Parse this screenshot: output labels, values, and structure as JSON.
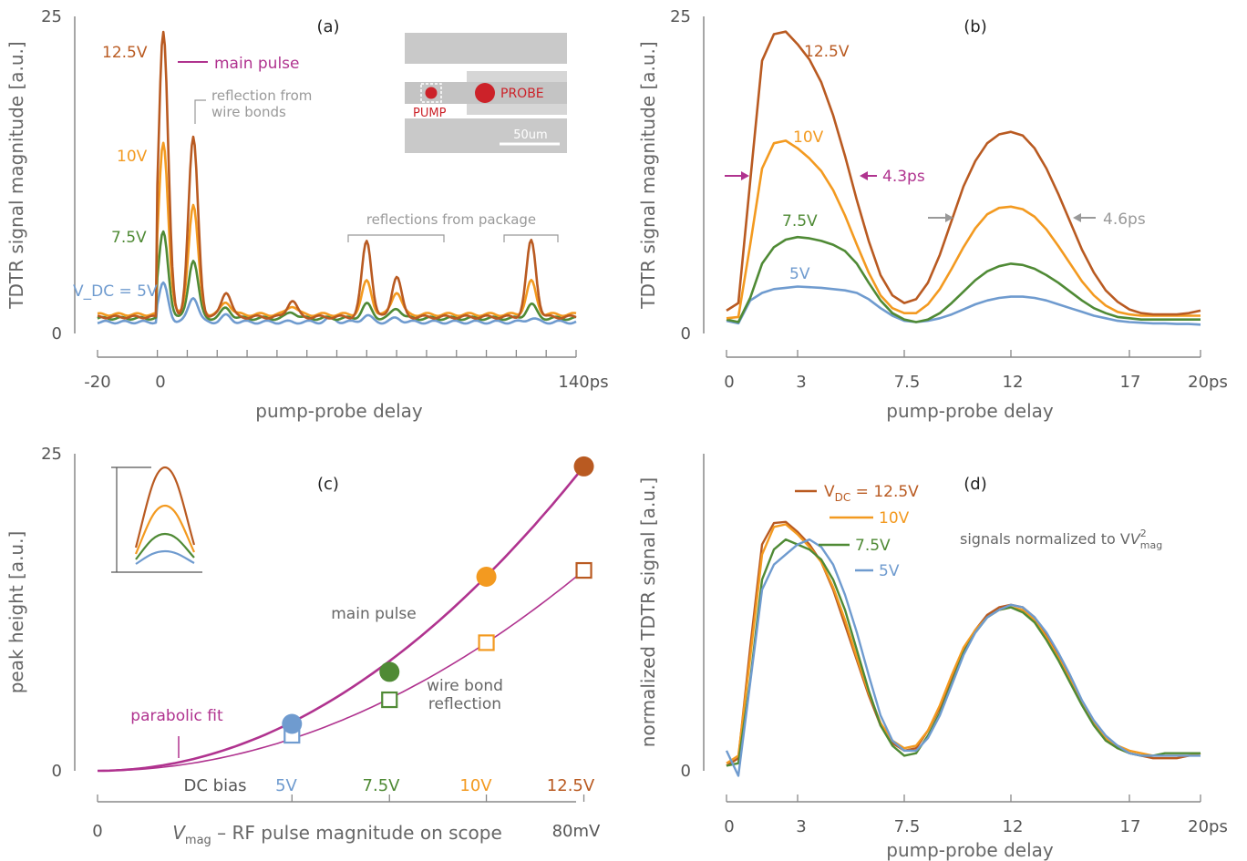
{
  "colors": {
    "v5": "#6f9bcf",
    "v7_5": "#4f8a35",
    "v10": "#f39a20",
    "v12_5": "#b95a21",
    "magenta": "#b0338f",
    "gray": "#999999",
    "red": "#cc2229"
  },
  "chart_data": [
    {
      "id": "a",
      "type": "line",
      "panel_label": "(a)",
      "xlabel": "pump-probe delay",
      "ylabel": "TDTR signal magnitude [a.u.]",
      "xlim": [
        -20,
        140
      ],
      "ylim": [
        0,
        25
      ],
      "x_tick_labels": [
        "-20",
        "0",
        "140ps"
      ],
      "y_tick_labels": [
        "0",
        "25"
      ],
      "series": [
        {
          "name": "V_DC = 5V",
          "color_key": "v5",
          "baseline": 0.9,
          "peaks": [
            [
              2,
              3.0
            ],
            [
              12,
              2.0
            ],
            [
              23,
              0.5
            ],
            [
              58,
              0.3
            ],
            [
              70,
              0.5
            ],
            [
              80,
              0.3
            ],
            [
              125,
              0.3
            ]
          ]
        },
        {
          "name": "7.5V",
          "color_key": "v7_5",
          "baseline": 1.2,
          "peaks": [
            [
              2,
              6.8
            ],
            [
              12,
              4.6
            ],
            [
              23,
              0.8
            ],
            [
              45,
              0.5
            ],
            [
              70,
              1.1
            ],
            [
              80,
              0.8
            ],
            [
              125,
              1.1
            ]
          ]
        },
        {
          "name": "10V",
          "color_key": "v10",
          "baseline": 1.5,
          "peaks": [
            [
              2,
              13.6
            ],
            [
              12,
              8.6
            ],
            [
              23,
              1.0
            ],
            [
              45,
              0.7
            ],
            [
              70,
              2.6
            ],
            [
              80,
              1.8
            ],
            [
              125,
              2.6
            ]
          ]
        },
        {
          "name": "12.5V",
          "color_key": "v12_5",
          "baseline": 1.3,
          "peaks": [
            [
              2,
              22.6
            ],
            [
              12,
              14.1
            ],
            [
              23,
              2.0
            ],
            [
              45,
              1.3
            ],
            [
              70,
              6.0
            ],
            [
              80,
              3.2
            ],
            [
              125,
              6.0
            ]
          ]
        }
      ],
      "series_labels": [
        "12.5V",
        "10V",
        "7.5V",
        "V_DC = 5V"
      ],
      "annotations": {
        "main_pulse": "main pulse",
        "wire_bonds": [
          "reflection from",
          "wire bonds"
        ],
        "package": "reflections from package"
      },
      "inset": {
        "pump": "PUMP",
        "probe": "PROBE",
        "scale": "50um"
      }
    },
    {
      "id": "b",
      "type": "line",
      "panel_label": "(b)",
      "xlabel": "pump-probe delay",
      "ylabel": "TDTR signal magnitude [a.u.]",
      "xlim": [
        0,
        20
      ],
      "ylim": [
        0,
        25
      ],
      "x_tick_labels": [
        "0",
        "3",
        "7.5",
        "12",
        "17",
        "20ps"
      ],
      "y_tick_labels": [
        "0",
        "25"
      ],
      "series": [
        {
          "name": "5V",
          "color_key": "v5",
          "x": [
            0,
            0.5,
            1,
            1.5,
            2,
            2.5,
            3,
            3.5,
            4,
            4.5,
            5,
            5.5,
            6,
            6.5,
            7,
            7.5,
            8,
            8.5,
            9,
            9.5,
            10,
            10.5,
            11,
            11.5,
            12,
            12.5,
            13,
            13.5,
            14,
            14.5,
            15,
            15.5,
            16,
            16.5,
            17,
            17.5,
            18,
            18.5,
            19,
            19.5,
            20
          ],
          "values": [
            1.0,
            0.8,
            2.6,
            3.2,
            3.5,
            3.6,
            3.7,
            3.65,
            3.6,
            3.5,
            3.4,
            3.2,
            2.7,
            2.0,
            1.4,
            1.0,
            0.9,
            1.0,
            1.2,
            1.5,
            1.9,
            2.3,
            2.6,
            2.8,
            2.9,
            2.9,
            2.8,
            2.6,
            2.3,
            2.0,
            1.7,
            1.4,
            1.2,
            1.0,
            0.9,
            0.85,
            0.8,
            0.8,
            0.75,
            0.75,
            0.7
          ]
        },
        {
          "name": "7.5V",
          "color_key": "v7_5",
          "x": [
            0,
            0.5,
            1,
            1.5,
            2,
            2.5,
            3,
            3.5,
            4,
            4.5,
            5,
            5.5,
            6,
            6.5,
            7,
            7.5,
            8,
            8.5,
            9,
            9.5,
            10,
            10.5,
            11,
            11.5,
            12,
            12.5,
            13,
            13.5,
            14,
            14.5,
            15,
            15.5,
            16,
            16.5,
            17,
            17.5,
            18,
            18.5,
            19,
            19.5,
            20
          ],
          "values": [
            1.1,
            0.9,
            2.8,
            5.5,
            6.8,
            7.4,
            7.6,
            7.5,
            7.3,
            7.0,
            6.5,
            5.5,
            4.0,
            2.6,
            1.6,
            1.1,
            0.9,
            1.1,
            1.6,
            2.4,
            3.3,
            4.2,
            4.9,
            5.3,
            5.5,
            5.4,
            5.1,
            4.6,
            4.0,
            3.3,
            2.6,
            2.0,
            1.6,
            1.3,
            1.2,
            1.1,
            1.1,
            1.1,
            1.1,
            1.1,
            1.1
          ]
        },
        {
          "name": "10V",
          "color_key": "v10",
          "x": [
            0,
            0.5,
            1,
            1.5,
            2,
            2.5,
            3,
            3.5,
            4,
            4.5,
            5,
            5.5,
            6,
            6.5,
            7,
            7.5,
            8,
            8.5,
            9,
            9.5,
            10,
            10.5,
            11,
            11.5,
            12,
            12.5,
            13,
            13.5,
            14,
            14.5,
            15,
            15.5,
            16,
            16.5,
            17,
            17.5,
            18,
            18.5,
            19,
            19.5,
            20
          ],
          "values": [
            1.2,
            1.3,
            7.0,
            13.0,
            15.0,
            15.2,
            14.6,
            13.8,
            12.8,
            11.3,
            9.3,
            7.0,
            4.8,
            3.0,
            2.0,
            1.6,
            1.6,
            2.3,
            3.5,
            5.1,
            6.8,
            8.3,
            9.4,
            9.9,
            10.0,
            9.8,
            9.2,
            8.2,
            6.9,
            5.5,
            4.1,
            3.0,
            2.2,
            1.7,
            1.5,
            1.4,
            1.4,
            1.4,
            1.4,
            1.4,
            1.4
          ]
        },
        {
          "name": "12.5V",
          "color_key": "v12_5",
          "x": [
            0,
            0.5,
            1,
            1.5,
            2,
            2.5,
            3,
            3.5,
            4,
            4.5,
            5,
            5.5,
            6,
            6.5,
            7,
            7.5,
            8,
            8.5,
            9,
            9.5,
            10,
            10.5,
            11,
            11.5,
            12,
            12.5,
            13,
            13.5,
            14,
            14.5,
            15,
            15.5,
            16,
            16.5,
            17,
            17.5,
            18,
            18.5,
            19,
            19.5,
            20
          ],
          "values": [
            1.8,
            2.4,
            12.0,
            21.5,
            23.6,
            23.8,
            22.8,
            21.6,
            19.8,
            17.2,
            14.0,
            10.5,
            7.3,
            4.6,
            3.0,
            2.4,
            2.7,
            4.0,
            6.2,
            8.9,
            11.6,
            13.6,
            15.0,
            15.7,
            15.9,
            15.6,
            14.6,
            13.0,
            11.0,
            8.8,
            6.6,
            4.8,
            3.4,
            2.5,
            1.9,
            1.6,
            1.5,
            1.5,
            1.5,
            1.6,
            1.8
          ]
        }
      ],
      "series_labels": [
        "12.5V",
        "10V",
        "7.5V",
        "5V"
      ],
      "annotations": {
        "fwhm_main": "4.3ps",
        "fwhm_reflection": "4.6ps"
      }
    },
    {
      "id": "c",
      "type": "scatter",
      "panel_label": "(c)",
      "xlabel": "V_mag – RF pulse magnitude on scope",
      "ylabel": "peak height [a.u.]",
      "xlim": [
        0,
        80
      ],
      "ylim": [
        0,
        25
      ],
      "x_tick_labels": [
        "0",
        "80mV"
      ],
      "y_tick_labels": [
        "0",
        "25"
      ],
      "dc_bias_label": "DC bias",
      "dc_bias_values": [
        "5V",
        "7.5V",
        "10V",
        "12.5V"
      ],
      "series": [
        {
          "name": "main pulse",
          "marker": "filled-circle",
          "x": [
            32.5,
            48.8,
            65,
            81.3
          ],
          "values": [
            3.7,
            7.8,
            15.3,
            24.0
          ]
        },
        {
          "name": "wire bond reflection",
          "marker": "open-square",
          "x": [
            32.5,
            48.8,
            65,
            81.3
          ],
          "values": [
            2.8,
            5.6,
            10.1,
            15.8
          ]
        }
      ],
      "fits": [
        {
          "name": "parabolic fit",
          "coef": 0.003631
        },
        {
          "coef": 0.00239
        }
      ],
      "labels": {
        "main": "main pulse",
        "wire": [
          "wire bond",
          "reflection"
        ],
        "fit": "parabolic fit"
      }
    },
    {
      "id": "d",
      "type": "line",
      "panel_label": "(d)",
      "xlabel": "pump-probe delay",
      "ylabel": "normalized TDTR signal [a.u.]",
      "xlim": [
        0,
        20
      ],
      "ylim": [
        0,
        1
      ],
      "x_tick_labels": [
        "0",
        "3",
        "7.5",
        "12",
        "17",
        "20ps"
      ],
      "y_tick_labels": [
        "0"
      ],
      "note": "signals normalized to V",
      "series": [
        {
          "name": "V_DC = 12.5V",
          "color_key": "v12_5",
          "x": [
            0,
            0.5,
            1,
            1.5,
            2,
            2.5,
            3,
            3.5,
            4,
            4.5,
            5,
            5.5,
            6,
            6.5,
            7,
            7.5,
            8,
            8.5,
            9,
            9.5,
            10,
            10.5,
            11,
            11.5,
            12,
            12.5,
            13,
            13.5,
            14,
            14.5,
            15,
            15.5,
            16,
            16.5,
            17,
            17.5,
            18,
            18.5,
            19,
            19.5,
            20
          ],
          "values": [
            0.02,
            0.05,
            0.49,
            0.9,
            0.985,
            0.99,
            0.95,
            0.9,
            0.83,
            0.72,
            0.58,
            0.44,
            0.3,
            0.18,
            0.11,
            0.08,
            0.09,
            0.16,
            0.25,
            0.37,
            0.48,
            0.56,
            0.62,
            0.65,
            0.66,
            0.65,
            0.61,
            0.54,
            0.46,
            0.37,
            0.27,
            0.19,
            0.13,
            0.09,
            0.07,
            0.06,
            0.05,
            0.05,
            0.05,
            0.06,
            0.07
          ]
        },
        {
          "name": "10V",
          "color_key": "v10",
          "x": [
            0,
            0.5,
            1,
            1.5,
            2,
            2.5,
            3,
            3.5,
            4,
            4.5,
            5,
            5.5,
            6,
            6.5,
            7,
            7.5,
            8,
            8.5,
            9,
            9.5,
            10,
            10.5,
            11,
            11.5,
            12,
            12.5,
            13,
            13.5,
            14,
            14.5,
            15,
            15.5,
            16,
            16.5,
            17,
            17.5,
            18,
            18.5,
            19,
            19.5,
            20
          ],
          "values": [
            0.03,
            0.06,
            0.45,
            0.86,
            0.97,
            0.98,
            0.94,
            0.89,
            0.83,
            0.73,
            0.6,
            0.45,
            0.31,
            0.19,
            0.12,
            0.09,
            0.1,
            0.16,
            0.26,
            0.38,
            0.49,
            0.56,
            0.61,
            0.64,
            0.65,
            0.64,
            0.6,
            0.53,
            0.45,
            0.36,
            0.27,
            0.19,
            0.13,
            0.1,
            0.08,
            0.07,
            0.06,
            0.06,
            0.06,
            0.06,
            0.07
          ]
        },
        {
          "name": "7.5V",
          "color_key": "v7_5",
          "x": [
            0,
            0.5,
            1,
            1.5,
            2,
            2.5,
            3,
            3.5,
            4,
            4.5,
            5,
            5.5,
            6,
            6.5,
            7,
            7.5,
            8,
            8.5,
            9,
            9.5,
            10,
            10.5,
            11,
            11.5,
            12,
            12.5,
            13,
            13.5,
            14,
            14.5,
            15,
            15.5,
            16,
            16.5,
            17,
            17.5,
            18,
            18.5,
            19,
            19.5,
            20
          ],
          "values": [
            0.02,
            0.03,
            0.36,
            0.76,
            0.88,
            0.92,
            0.9,
            0.88,
            0.84,
            0.76,
            0.64,
            0.48,
            0.32,
            0.18,
            0.1,
            0.06,
            0.07,
            0.14,
            0.23,
            0.35,
            0.47,
            0.55,
            0.61,
            0.64,
            0.65,
            0.63,
            0.59,
            0.52,
            0.44,
            0.35,
            0.26,
            0.18,
            0.12,
            0.09,
            0.07,
            0.06,
            0.06,
            0.07,
            0.07,
            0.07,
            0.07
          ]
        },
        {
          "name": "5V",
          "color_key": "v5",
          "x": [
            0,
            0.5,
            1,
            1.5,
            2,
            2.5,
            3,
            3.5,
            4,
            4.5,
            5,
            5.5,
            6,
            6.5,
            7,
            7.5,
            8,
            8.5,
            9,
            9.5,
            10,
            10.5,
            11,
            11.5,
            12,
            12.5,
            13,
            13.5,
            14,
            14.5,
            15,
            15.5,
            16,
            16.5,
            17,
            17.5,
            18,
            18.5,
            19,
            19.5,
            20
          ],
          "values": [
            0.08,
            -0.02,
            0.35,
            0.72,
            0.82,
            0.86,
            0.9,
            0.92,
            0.89,
            0.82,
            0.7,
            0.55,
            0.38,
            0.22,
            0.12,
            0.08,
            0.08,
            0.13,
            0.22,
            0.34,
            0.46,
            0.55,
            0.61,
            0.64,
            0.66,
            0.65,
            0.61,
            0.55,
            0.47,
            0.38,
            0.28,
            0.2,
            0.14,
            0.1,
            0.07,
            0.06,
            0.06,
            0.06,
            0.06,
            0.06,
            0.06
          ]
        }
      ],
      "series_labels": [
        "V_DC = 12.5V",
        "10V",
        "7.5V",
        "5V"
      ]
    }
  ]
}
